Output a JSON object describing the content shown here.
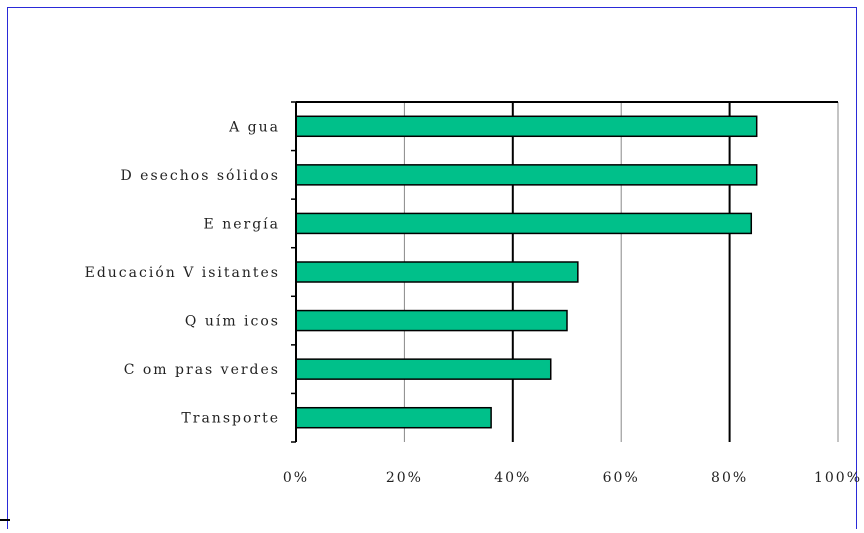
{
  "chart_data": {
    "type": "bar",
    "orientation": "horizontal",
    "categories": [
      "Agua",
      "Desechos sólidos",
      "Energía",
      "Educación Visitantes",
      "Químicos",
      "Compras verdes",
      "Transporte"
    ],
    "category_labels": [
      "A gua",
      "D esechos sólidos",
      "E nergía",
      "Educación V isitantes",
      "Q uím icos",
      "C om pras verdes",
      "Transporte"
    ],
    "values": [
      85,
      85,
      84,
      52,
      50,
      47,
      36
    ],
    "xlim": [
      0,
      100
    ],
    "xticks": [
      0,
      20,
      40,
      60,
      80,
      100
    ],
    "xtick_labels": [
      "0%",
      "20%",
      "40%",
      "60%",
      "80%",
      "100%"
    ],
    "grid": "vertical",
    "colors": {
      "bar": "#00c08a",
      "bar_edge": "#000000",
      "grid": "#888888",
      "axis": "#000000"
    }
  }
}
